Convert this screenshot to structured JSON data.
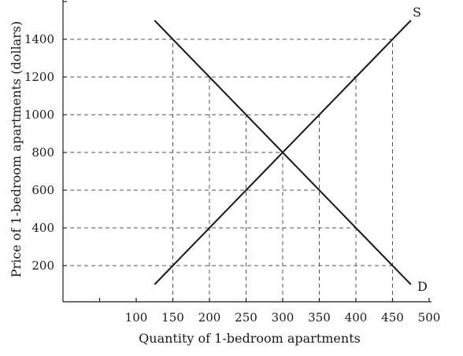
{
  "chart_data": {
    "type": "line",
    "xlabel": "Quantity of 1-bedroom apartments",
    "ylabel": "Price of 1-bedroom apartments (dollars)",
    "xlim": [
      50,
      500
    ],
    "ylim": [
      0,
      1600
    ],
    "xticks": [
      100,
      150,
      200,
      250,
      300,
      350,
      400,
      450,
      500
    ],
    "yticks": [
      200,
      400,
      600,
      800,
      1000,
      1200,
      1400
    ],
    "grid": "dashed guide lines at demand and supply points",
    "series": [
      {
        "name": "S",
        "x": [
          125,
          150,
          200,
          250,
          300,
          350,
          400,
          450,
          475
        ],
        "y": [
          100,
          200,
          400,
          600,
          800,
          1000,
          1200,
          1400,
          1500
        ]
      },
      {
        "name": "D",
        "x": [
          125,
          150,
          200,
          250,
          300,
          350,
          400,
          450,
          475
        ],
        "y": [
          1500,
          1400,
          1200,
          1000,
          800,
          600,
          400,
          200,
          100
        ]
      }
    ]
  }
}
